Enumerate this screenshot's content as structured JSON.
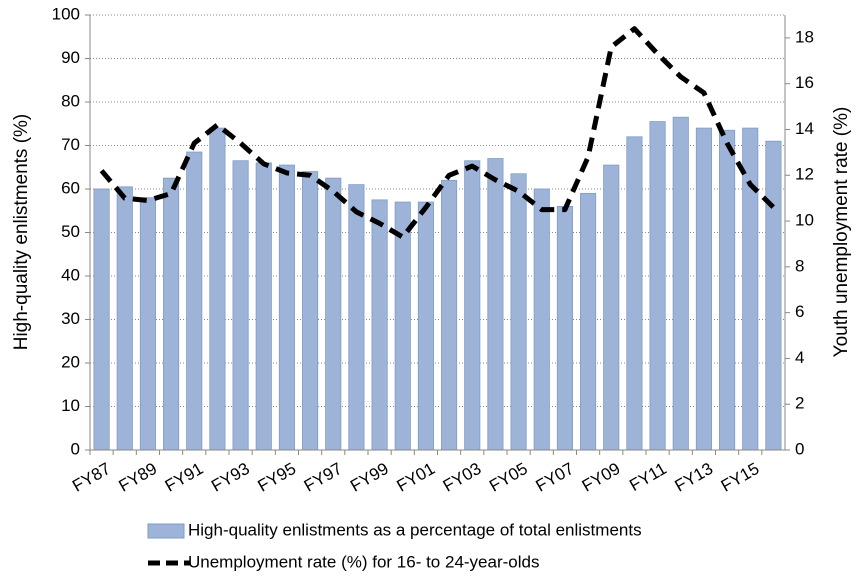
{
  "chart_data": {
    "type": "bar-line",
    "y_label": "High-quality enlistments (%)",
    "y2_label": "Youth unemployment rate (%)",
    "categories": [
      "FY87",
      null,
      "FY89",
      null,
      "FY91",
      null,
      "FY93",
      null,
      "FY95",
      null,
      "FY97",
      null,
      "FY99",
      null,
      "FY01",
      null,
      "FY03",
      null,
      "FY05",
      null,
      "FY07",
      null,
      "FY09",
      null,
      "FY11",
      null,
      "FY13",
      null,
      "FY15",
      null
    ],
    "series": [
      {
        "name": "High-quality enlistments as a percentage of total enlistments",
        "type": "bar",
        "color": "#9db4d8",
        "values": [
          60,
          60.5,
          58,
          62.5,
          68.5,
          74,
          66.5,
          66,
          65.5,
          64,
          62.5,
          61,
          57.5,
          57,
          57,
          62,
          66.5,
          67,
          63.5,
          60,
          56,
          59,
          65.5,
          72,
          75.5,
          76.5,
          74,
          73.5,
          74,
          71
        ]
      },
      {
        "name": "Unemployment rate (%) for 16- to 24-year-olds",
        "type": "line",
        "axis": "y2",
        "color": "#000000",
        "values": [
          12.2,
          11.0,
          10.9,
          11.2,
          13.4,
          14.2,
          13.4,
          12.5,
          12.1,
          12.0,
          11.3,
          10.4,
          9.9,
          9.3,
          10.6,
          12.0,
          12.4,
          11.8,
          11.3,
          10.5,
          10.5,
          12.8,
          17.6,
          18.4,
          17.3,
          16.3,
          15.6,
          13.4,
          11.6,
          10.6
        ]
      }
    ],
    "ylim": [
      0,
      100
    ],
    "yticks": [
      0,
      10,
      20,
      30,
      40,
      50,
      60,
      70,
      80,
      90,
      100
    ],
    "y2lim": [
      0,
      19
    ],
    "y2ticks": [
      0,
      2,
      4,
      6,
      8,
      10,
      12,
      14,
      16,
      18
    ],
    "grid": true
  }
}
